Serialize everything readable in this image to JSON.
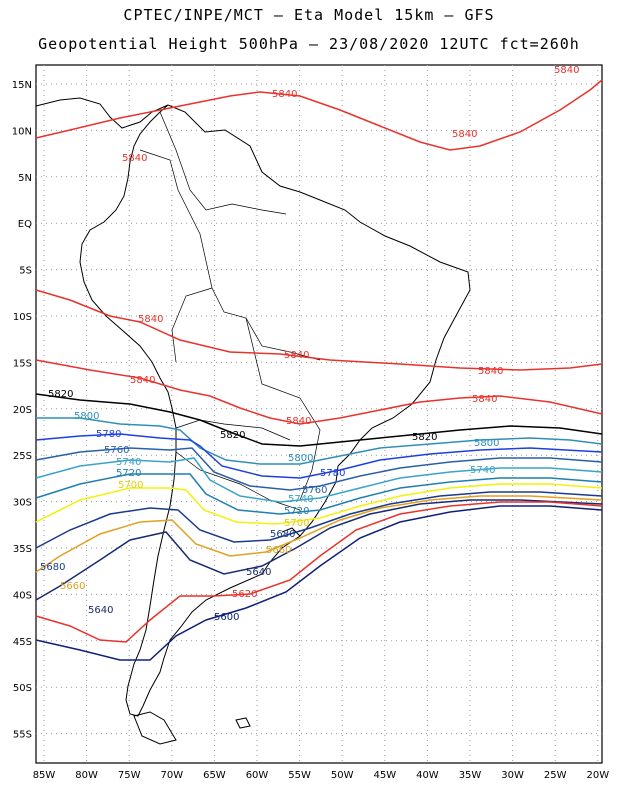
{
  "header": {
    "line1": "CPTEC/INPE/MCT –  Eta Model 15km – GFS",
    "line2": "Geopotential Height 500hPa – 23/08/2020 12UTC fct=260h"
  },
  "axes": {
    "lat_labels": [
      "15N",
      "10N",
      "5N",
      "EQ",
      "5S",
      "10S",
      "15S",
      "20S",
      "25S",
      "30S",
      "35S",
      "40S",
      "45S",
      "50S",
      "55S"
    ],
    "lon_labels": [
      "85W",
      "80W",
      "75W",
      "70W",
      "65W",
      "60W",
      "55W",
      "50W",
      "45W",
      "40W",
      "35W",
      "30W",
      "25W",
      "20W"
    ]
  },
  "contours": [
    {
      "value": "5840",
      "color": "#e8322c"
    },
    {
      "value": "5820",
      "color": "#000000"
    },
    {
      "value": "5800",
      "color": "#2f8fb8"
    },
    {
      "value": "5780",
      "color": "#1e3fe0"
    },
    {
      "value": "5760",
      "color": "#2a5fa8"
    },
    {
      "value": "5740",
      "color": "#3aa3c8"
    },
    {
      "value": "5720",
      "color": "#1e7fb0"
    },
    {
      "value": "5700",
      "color": "#f2f20a"
    },
    {
      "value": "5680",
      "color": "#1a3a8a"
    },
    {
      "value": "5660",
      "color": "#e0a020"
    },
    {
      "value": "5640",
      "color": "#1a2a70"
    },
    {
      "value": "5620",
      "color": "#e8322c"
    },
    {
      "value": "5600",
      "color": "#10207a"
    }
  ],
  "colors": {
    "land_outline": "#000000",
    "grid": "#9a9a9a"
  }
}
